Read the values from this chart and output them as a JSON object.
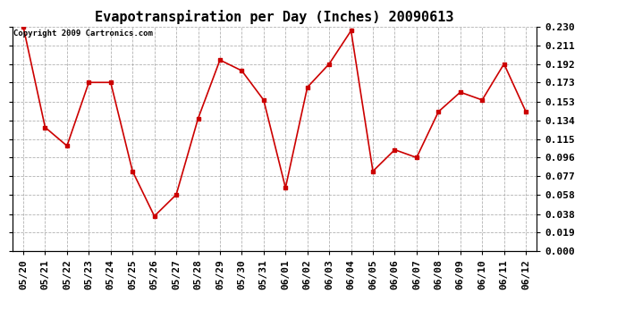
{
  "title": "Evapotranspiration per Day (Inches) 20090613",
  "copyright_text": "Copyright 2009 Cartronics.com",
  "labels": [
    "05/20",
    "05/21",
    "05/22",
    "05/23",
    "05/24",
    "05/25",
    "05/26",
    "05/27",
    "05/28",
    "05/29",
    "05/30",
    "05/31",
    "06/01",
    "06/02",
    "06/03",
    "06/04",
    "06/05",
    "06/06",
    "06/07",
    "06/08",
    "06/09",
    "06/10",
    "06/11",
    "06/12"
  ],
  "values": [
    0.23,
    0.127,
    0.108,
    0.173,
    0.173,
    0.082,
    0.036,
    0.058,
    0.136,
    0.196,
    0.185,
    0.155,
    0.065,
    0.168,
    0.192,
    0.226,
    0.082,
    0.104,
    0.096,
    0.143,
    0.163,
    0.155,
    0.192,
    0.143
  ],
  "line_color": "#cc0000",
  "marker": "s",
  "marker_color": "#cc0000",
  "marker_size": 3,
  "bg_color": "#ffffff",
  "grid_color": "#aaaaaa",
  "ylim": [
    0.0,
    0.23
  ],
  "yticks": [
    0.0,
    0.019,
    0.038,
    0.058,
    0.077,
    0.096,
    0.115,
    0.134,
    0.153,
    0.173,
    0.192,
    0.211,
    0.23
  ],
  "title_fontsize": 11,
  "tick_fontsize": 8,
  "copyright_fontsize": 6.5
}
